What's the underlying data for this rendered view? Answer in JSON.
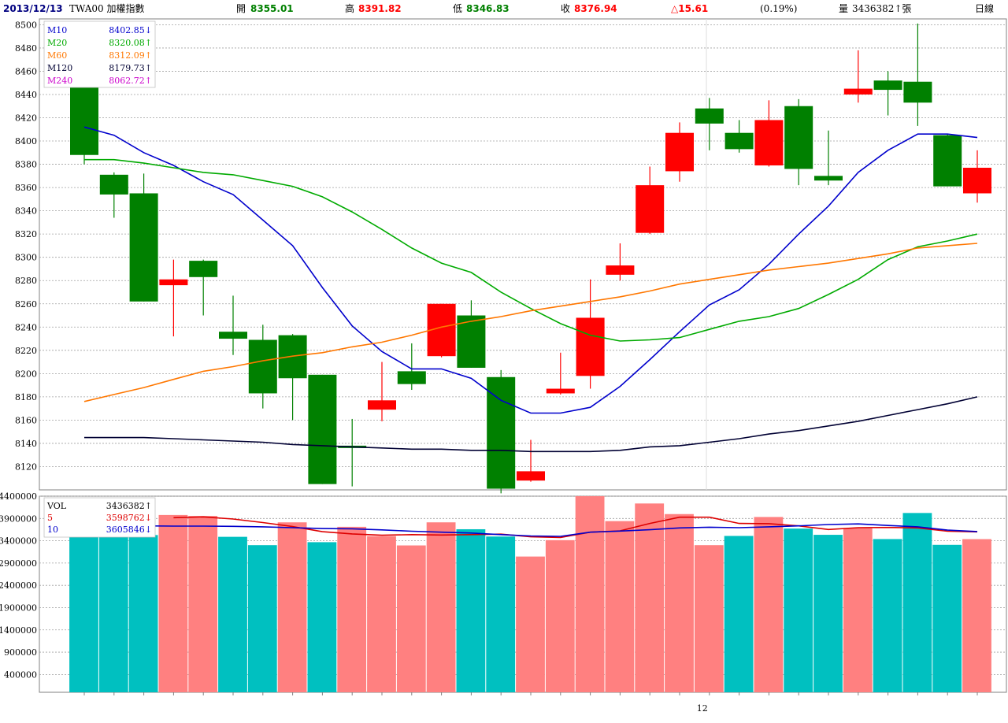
{
  "header": {
    "date": "2013/12/13",
    "symbol": "TWA00 加權指數",
    "open_label": "開",
    "open": "8355.01",
    "high_label": "高",
    "high": "8391.82",
    "low_label": "低",
    "low": "8346.83",
    "close_label": "收",
    "close": "8376.94",
    "change": "△15.61",
    "change_pct": "(0.19%)",
    "volume_label": "量",
    "volume": "3436382↑張",
    "period": "日線"
  },
  "colors": {
    "up": "#ff0000",
    "down": "#008000",
    "vol_up": "#ff8080",
    "vol_down": "#00c0c0",
    "M10": "#0000cc",
    "M20": "#00aa00",
    "M60": "#ff7700",
    "M120": "#000033",
    "M240": "#cc00cc",
    "vol_ma5": "#dd0000",
    "vol_ma10": "#0000cc",
    "grid": "#a0a0a0"
  },
  "ma_legend": [
    {
      "key": "M10",
      "label": "M10",
      "value": "8402.85↓"
    },
    {
      "key": "M20",
      "label": "M20",
      "value": "8320.08↑"
    },
    {
      "key": "M60",
      "label": "M60",
      "value": "8312.09↑"
    },
    {
      "key": "M120",
      "label": "M120",
      "value": "8179.73↑"
    },
    {
      "key": "M240",
      "label": "M240",
      "value": "8062.72↑"
    }
  ],
  "vol_legend": [
    {
      "key": "VOL",
      "label": "VOL",
      "value": "3436382↑"
    },
    {
      "key": "vol_ma5",
      "label": "5",
      "value": "3598762↓"
    },
    {
      "key": "vol_ma10",
      "label": "10",
      "value": "3605846↓"
    }
  ],
  "x_labels": [
    {
      "index": 21,
      "text": "12"
    }
  ],
  "chart_data": [
    {
      "type": "candlestick",
      "name": "price",
      "ylim": [
        8100,
        8505
      ],
      "yticks": [
        8120,
        8140,
        8160,
        8180,
        8200,
        8220,
        8240,
        8260,
        8280,
        8300,
        8320,
        8340,
        8360,
        8380,
        8400,
        8420,
        8440,
        8460,
        8480,
        8500
      ],
      "grid": true,
      "candles": [
        {
          "o": 8448,
          "h": 8450,
          "l": 8380,
          "c": 8388
        },
        {
          "o": 8371,
          "h": 8373,
          "l": 8334,
          "c": 8354
        },
        {
          "o": 8355,
          "h": 8372,
          "l": 8262,
          "c": 8262
        },
        {
          "o": 8276,
          "h": 8298,
          "l": 8232,
          "c": 8281
        },
        {
          "o": 8297,
          "h": 8298,
          "l": 8250,
          "c": 8283
        },
        {
          "o": 8236,
          "h": 8267,
          "l": 8216,
          "c": 8230
        },
        {
          "o": 8229,
          "h": 8242,
          "l": 8170,
          "c": 8183
        },
        {
          "o": 8233,
          "h": 8234,
          "l": 8160,
          "c": 8196
        },
        {
          "o": 8199,
          "h": 8199,
          "l": 8105,
          "c": 8105
        },
        {
          "o": 8138,
          "h": 8161,
          "l": 8103,
          "c": 8136
        },
        {
          "o": 8169,
          "h": 8210,
          "l": 8159,
          "c": 8177
        },
        {
          "o": 8202,
          "h": 8226,
          "l": 8186,
          "c": 8191
        },
        {
          "o": 8215,
          "h": 8260,
          "l": 8214,
          "c": 8260
        },
        {
          "o": 8250,
          "h": 8263,
          "l": 8205,
          "c": 8205
        },
        {
          "o": 8197,
          "h": 8203,
          "l": 8097,
          "c": 8101
        },
        {
          "o": 8108,
          "h": 8143,
          "l": 8107,
          "c": 8116
        },
        {
          "o": 8183,
          "h": 8218,
          "l": 8182,
          "c": 8187
        },
        {
          "o": 8198,
          "h": 8281,
          "l": 8187,
          "c": 8248
        },
        {
          "o": 8285,
          "h": 8312,
          "l": 8280,
          "c": 8293
        },
        {
          "o": 8321,
          "h": 8378,
          "l": 8320,
          "c": 8362
        },
        {
          "o": 8374,
          "h": 8416,
          "l": 8365,
          "c": 8407
        },
        {
          "o": 8428,
          "h": 8437,
          "l": 8392,
          "c": 8415
        },
        {
          "o": 8407,
          "h": 8418,
          "l": 8390,
          "c": 8393
        },
        {
          "o": 8379,
          "h": 8435,
          "l": 8378,
          "c": 8418
        },
        {
          "o": 8430,
          "h": 8436,
          "l": 8362,
          "c": 8376
        },
        {
          "o": 8370,
          "h": 8409,
          "l": 8362,
          "c": 8366
        },
        {
          "o": 8440,
          "h": 8478,
          "l": 8433,
          "c": 8445
        },
        {
          "o": 8452,
          "h": 8460,
          "l": 8422,
          "c": 8444
        },
        {
          "o": 8451,
          "h": 8501,
          "l": 8413,
          "c": 8433
        },
        {
          "o": 8405,
          "h": 8406,
          "l": 8361,
          "c": 8361
        },
        {
          "o": 8355,
          "h": 8392,
          "l": 8347,
          "c": 8377
        }
      ],
      "ma": {
        "M10": [
          8412,
          8405,
          8390,
          8379,
          8365,
          8354,
          8332,
          8310,
          8274,
          8241,
          8219,
          8204,
          8204,
          8196,
          8177,
          8166,
          8166,
          8171,
          8189,
          8212,
          8236,
          8259,
          8272,
          8294,
          8320,
          8344,
          8373,
          8392,
          8406,
          8406,
          8403
        ],
        "M20": [
          8384,
          8384,
          8381,
          8377,
          8373,
          8371,
          8366,
          8361,
          8352,
          8339,
          8324,
          8308,
          8295,
          8287,
          8270,
          8256,
          8243,
          8233,
          8228,
          8229,
          8231,
          8238,
          8245,
          8249,
          8256,
          8268,
          8281,
          8298,
          8309,
          8314,
          8320
        ],
        "M60": [
          8176,
          8182,
          8188,
          8195,
          8202,
          8206,
          8211,
          8215,
          8218,
          8223,
          8227,
          8233,
          8240,
          8245,
          8249,
          8254,
          8258,
          8262,
          8266,
          8271,
          8277,
          8281,
          8285,
          8289,
          8292,
          8295,
          8299,
          8303,
          8308,
          8310,
          8312
        ],
        "M120": [
          8145,
          8145,
          8145,
          8144,
          8143,
          8142,
          8141,
          8139,
          8138,
          8137,
          8136,
          8135,
          8135,
          8134,
          8134,
          8133,
          8133,
          8133,
          8134,
          8137,
          8138,
          8141,
          8144,
          8148,
          8151,
          8155,
          8159,
          8164,
          8169,
          8174,
          8180
        ]
      }
    },
    {
      "type": "bar",
      "name": "volume",
      "ylim": [
        0,
        4400000
      ],
      "yticks": [
        400000,
        900000,
        1400000,
        1900000,
        2400000,
        2900000,
        3400000,
        3900000,
        4400000
      ],
      "grid": true,
      "values": [
        3528000,
        3528000,
        3528000,
        3978000,
        3956000,
        3488000,
        3301000,
        3813000,
        3368000,
        3713000,
        3503000,
        3295000,
        3813000,
        3658000,
        3495000,
        3046000,
        3413000,
        4400000,
        3840000,
        4236000,
        3998000,
        3301000,
        3508000,
        3933000,
        3673000,
        3533000,
        3683000,
        3438000,
        4023000,
        3308000,
        3436382
      ],
      "colors": [
        "down",
        "down",
        "down",
        "up",
        "up",
        "down",
        "down",
        "up",
        "down",
        "up",
        "up",
        "up",
        "up",
        "down",
        "down",
        "up",
        "up",
        "up",
        "up",
        "up",
        "up",
        "up",
        "down",
        "up",
        "down",
        "down",
        "up",
        "down",
        "down",
        "down",
        "up"
      ],
      "ma": {
        "vol_ma5": [
          null,
          null,
          null,
          3918000,
          3935000,
          3888000,
          3808000,
          3718000,
          3603000,
          3553000,
          3523000,
          3538000,
          3528000,
          3538000,
          3548000,
          3488000,
          3473000,
          3593000,
          3623000,
          3788000,
          3928000,
          3928000,
          3788000,
          3783000,
          3733000,
          3653000,
          3693000,
          3698000,
          3688000,
          3613000,
          3598762
        ],
        "vol_ma10": [
          3653000,
          3718000,
          3733000,
          3728000,
          3728000,
          3723000,
          3713000,
          3693000,
          3673000,
          3668000,
          3643000,
          3613000,
          3593000,
          3573000,
          3538000,
          3508000,
          3498000,
          3593000,
          3618000,
          3648000,
          3688000,
          3703000,
          3693000,
          3713000,
          3733000,
          3763000,
          3778000,
          3743000,
          3713000,
          3638000,
          3605846
        ]
      }
    }
  ]
}
